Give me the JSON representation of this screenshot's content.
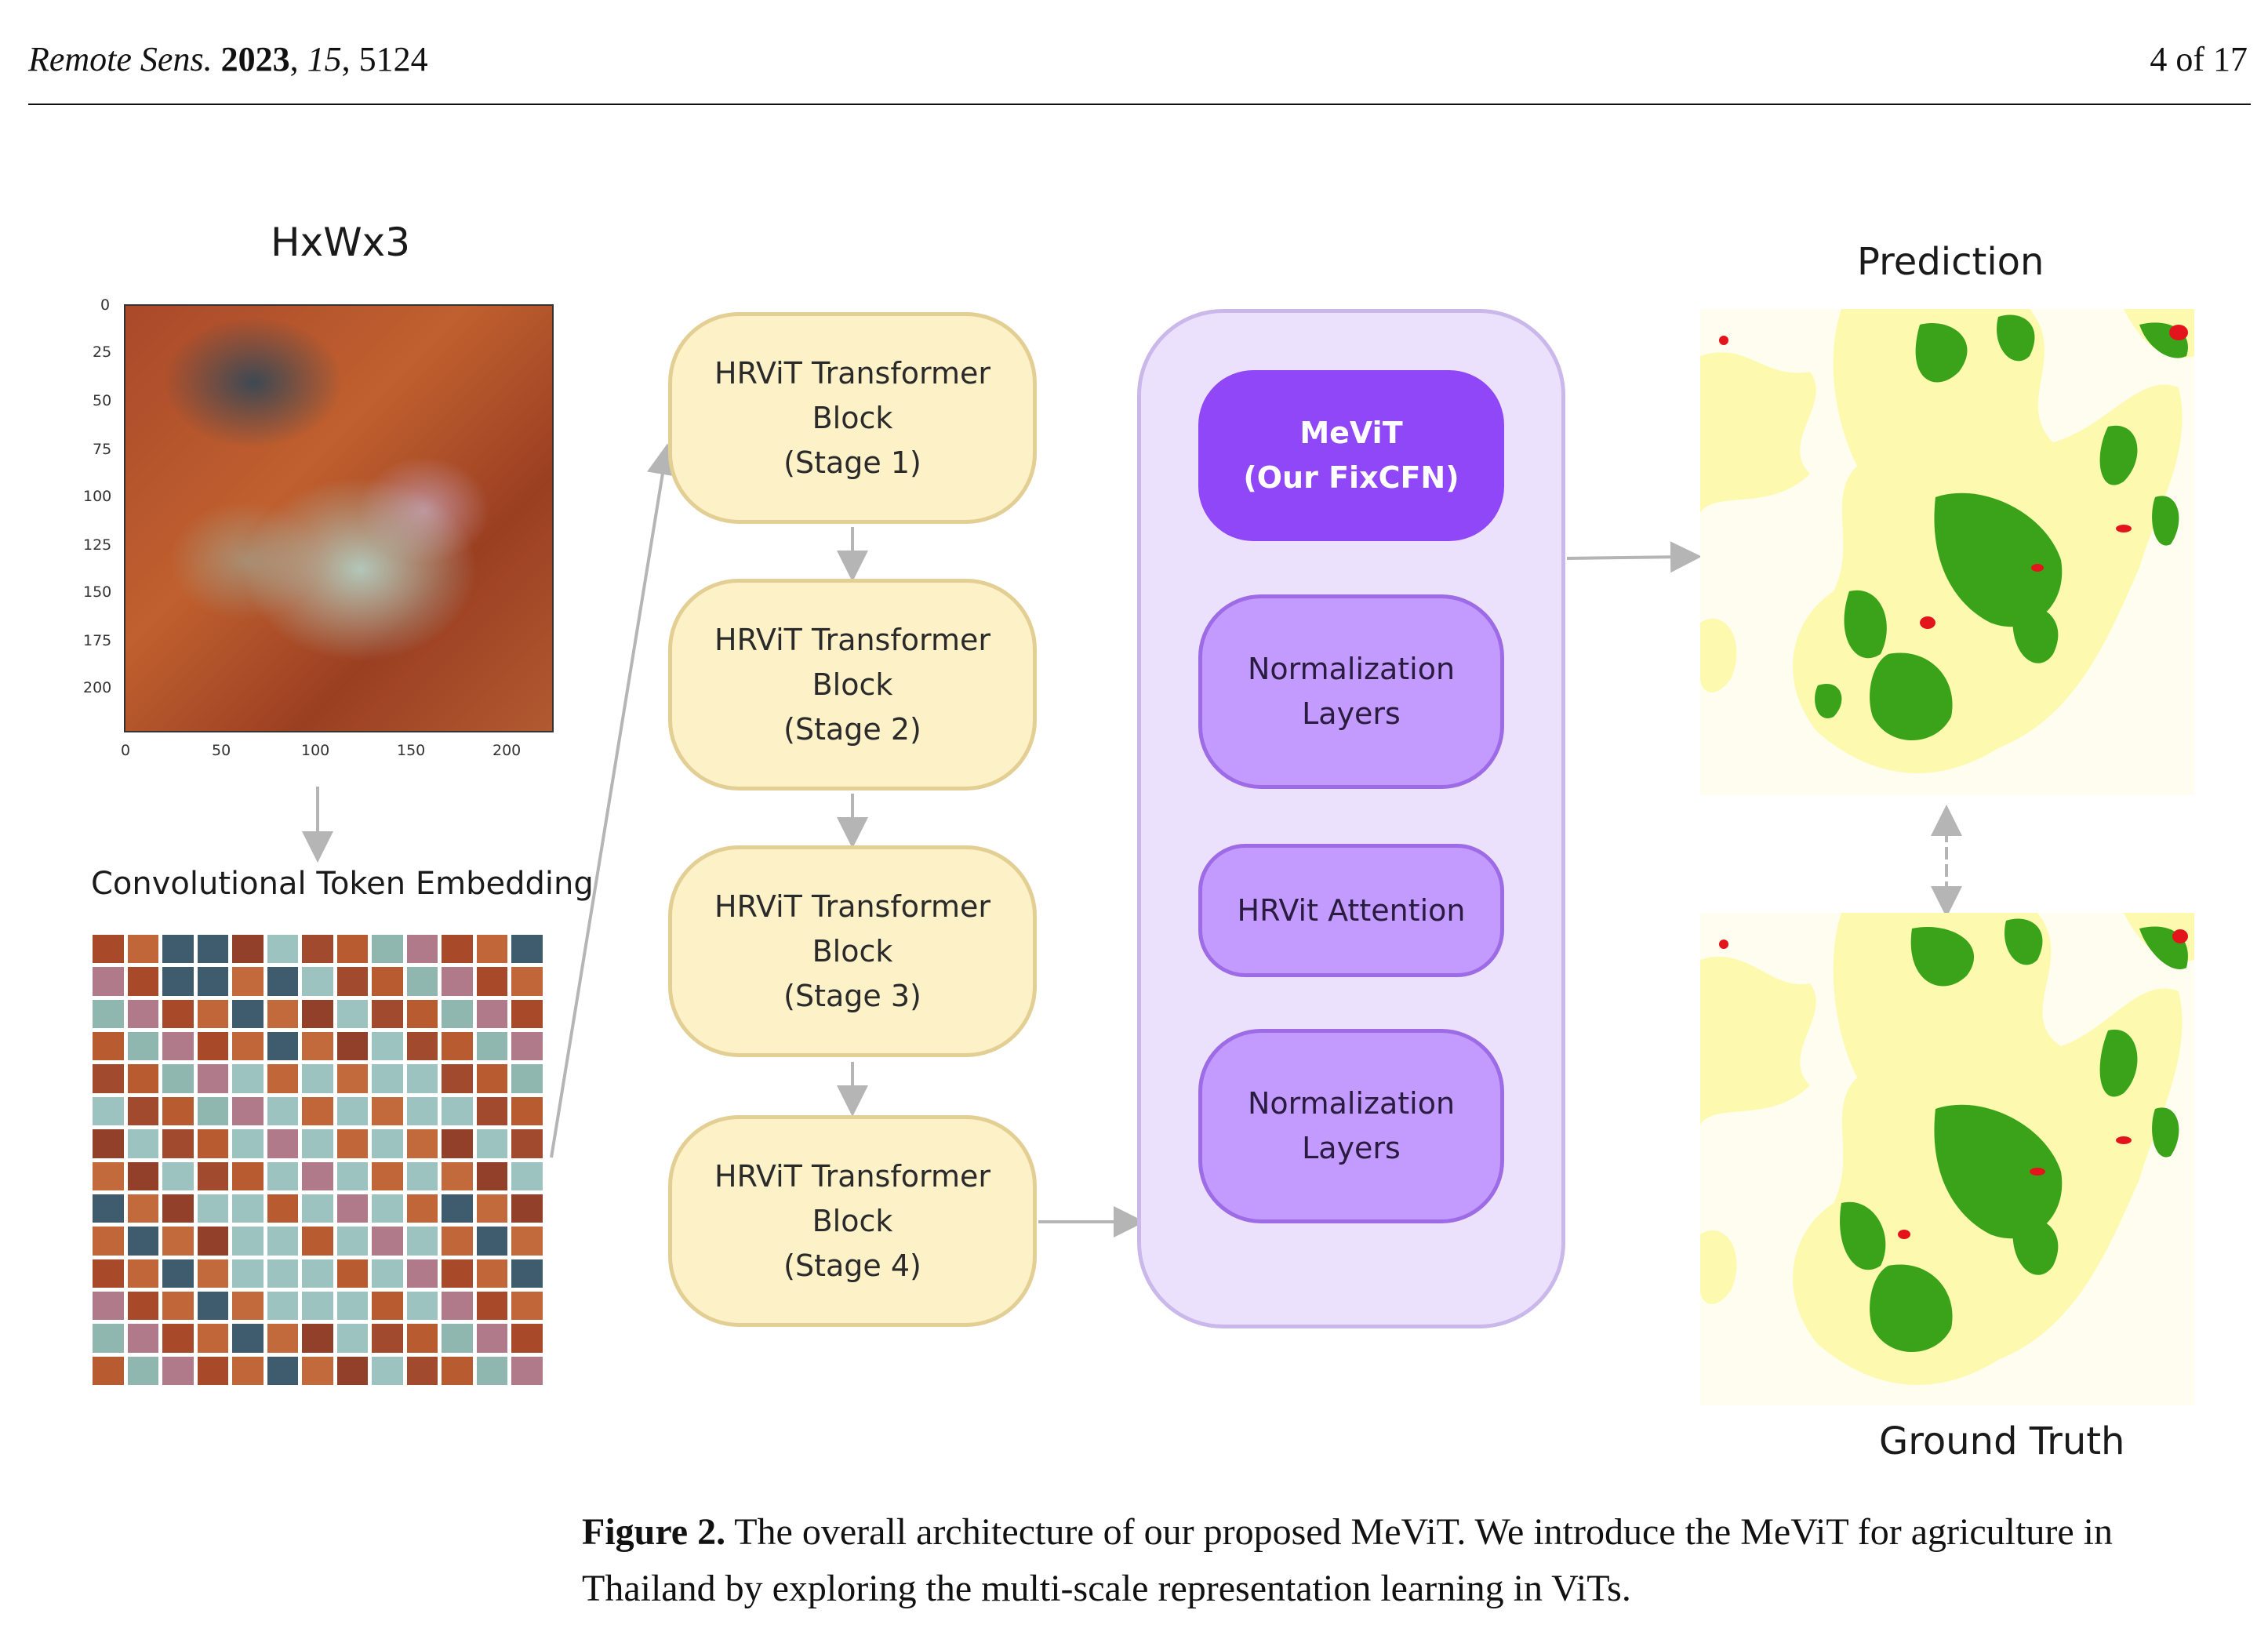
{
  "header": {
    "journal": "Remote Sens.",
    "year": "2023",
    "volume": "15",
    "article": "5124",
    "page": "4 of 17"
  },
  "figure": {
    "input_label": "HxWx3",
    "y_ticks": [
      "0",
      "25",
      "50",
      "75",
      "100",
      "125",
      "150",
      "175",
      "200"
    ],
    "x_ticks": [
      "0",
      "50",
      "100",
      "150",
      "200"
    ],
    "embedding_label": "Convolutional Token Embedding",
    "stages": [
      {
        "line1": "HRViT Transformer",
        "line2": "Block",
        "line3": "(Stage 1)"
      },
      {
        "line1": "HRViT Transformer",
        "line2": "Block",
        "line3": "(Stage 2)"
      },
      {
        "line1": "HRViT Transformer",
        "line2": "Block",
        "line3": "(Stage 3)"
      },
      {
        "line1": "HRViT Transformer",
        "line2": "Block",
        "line3": "(Stage 4)"
      }
    ],
    "mevit": {
      "line1": "MeViT",
      "line2": "(Our FixCFN)"
    },
    "norm_top": {
      "line1": "Normalization",
      "line2": "Layers"
    },
    "attention": "HRVit Attention",
    "norm_bottom": {
      "line1": "Normalization",
      "line2": "Layers"
    },
    "prediction_label": "Prediction",
    "ground_truth_label": "Ground Truth",
    "colors": {
      "stage_fill": "#fdf1c8",
      "panel_fill": "#ece1fd",
      "mevit_fill": "#8f47f7",
      "layer_fill": "#c39bfe",
      "map_yellow": "#fdfab0",
      "map_green": "#3ba31a",
      "map_red": "#e3141c"
    }
  },
  "caption": {
    "label": "Figure 2.",
    "text": " The overall architecture of our proposed MeViT. We introduce the MeViT for agriculture in Thailand by exploring the multi-scale representation learning in ViTs."
  }
}
